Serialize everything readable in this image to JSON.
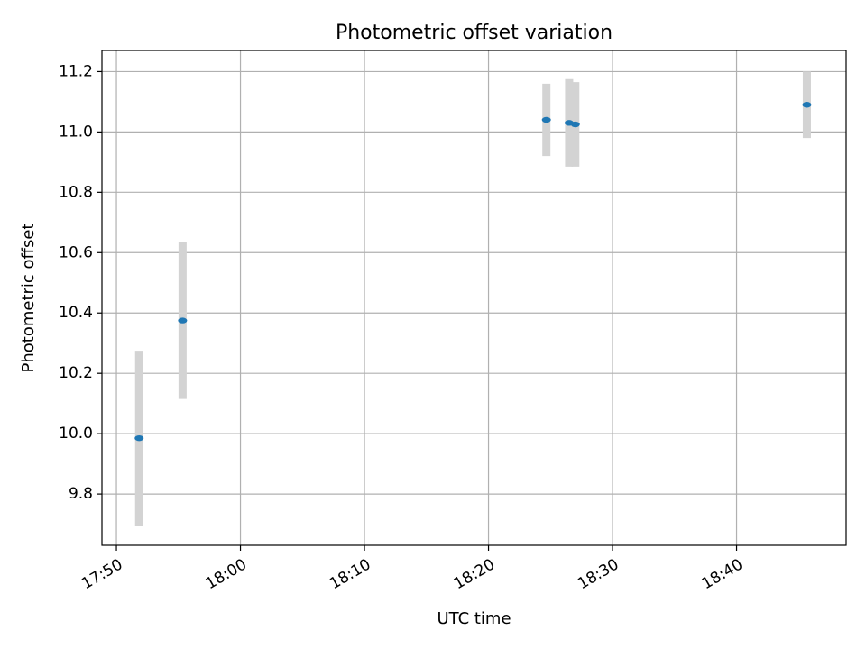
{
  "chart_data": {
    "type": "scatter",
    "title": "Photometric offset variation",
    "xlabel": "UTC time",
    "ylabel": "Photometric offset",
    "grid": true,
    "x_ticks": [
      "17:50",
      "18:00",
      "18:10",
      "18:20",
      "18:30",
      "18:40"
    ],
    "y_ticks": [
      "9.8",
      "10.0",
      "10.2",
      "10.4",
      "10.6",
      "10.8",
      "11.0",
      "11.2"
    ],
    "xlim": [
      "17:48:50",
      "18:48:50"
    ],
    "ylim": [
      9.63,
      11.27
    ],
    "series": [
      {
        "marker_color": "#1f77b4",
        "errorbar_color": "#d3d3d3",
        "points": [
          {
            "x": "17:51:50",
            "y": 9.985,
            "yerr": 0.29
          },
          {
            "x": "17:55:20",
            "y": 10.375,
            "yerr": 0.26
          },
          {
            "x": "18:24:40",
            "y": 11.04,
            "yerr": 0.12
          },
          {
            "x": "18:26:30",
            "y": 11.03,
            "yerr": 0.145
          },
          {
            "x": "18:27:00",
            "y": 11.025,
            "yerr": 0.14
          },
          {
            "x": "18:45:40",
            "y": 11.09,
            "yerr": 0.11
          }
        ]
      }
    ]
  }
}
